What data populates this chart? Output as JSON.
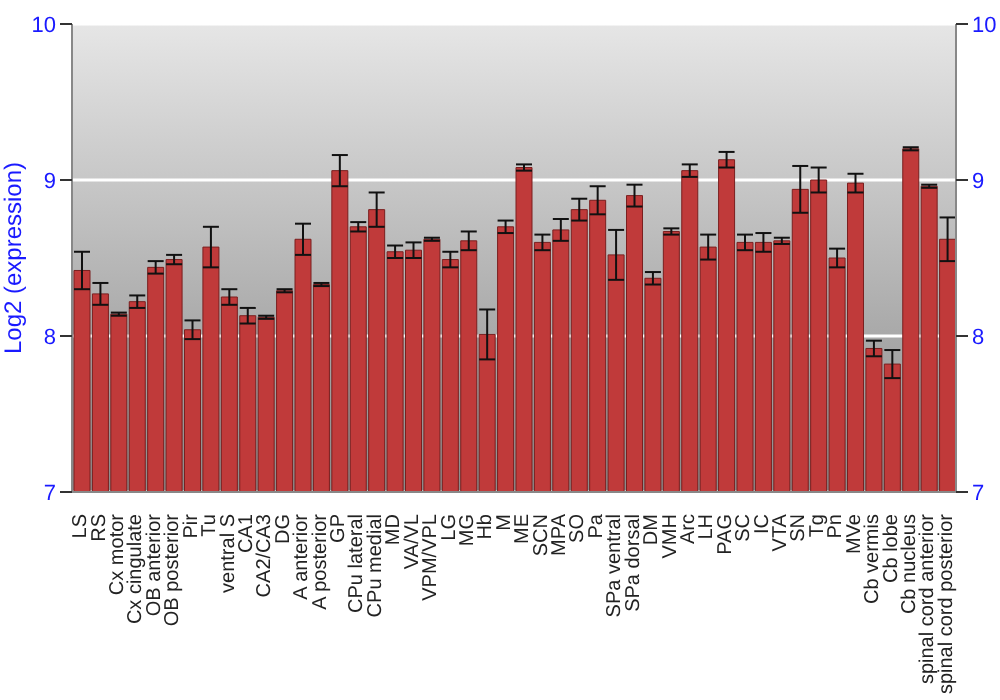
{
  "chart_data": {
    "type": "bar",
    "ylabel": "Log2 (expression)",
    "categories": [
      "LS",
      "RS",
      "Cx motor",
      "Cx cingulate",
      "OB anterior",
      "OB posterior",
      "Pir",
      "Tu",
      "ventral S",
      "CA1",
      "CA2/CA3",
      "DG",
      "A anterior",
      "A posterior",
      "GP",
      "CPu lateral",
      "CPu medial",
      "MD",
      "VA/VL",
      "VPM/VPL",
      "LG",
      "MG",
      "Hb",
      "M",
      "ME",
      "SCN",
      "MPA",
      "SO",
      "Pa",
      "SPa ventral",
      "SPa dorsal",
      "DM",
      "VMH",
      "Arc",
      "LH",
      "PAG",
      "SC",
      "IC",
      "VTA",
      "SN",
      "Tg",
      "Pn",
      "MVe",
      "Cb vermis",
      "Cb lobe",
      "Cb nucleus",
      "spinal cord anterior",
      "spinal cord posterior"
    ],
    "values": [
      8.42,
      8.27,
      8.14,
      8.22,
      8.44,
      8.49,
      8.04,
      8.57,
      8.25,
      8.13,
      8.12,
      8.29,
      8.62,
      8.33,
      9.06,
      8.7,
      8.81,
      8.54,
      8.55,
      8.62,
      8.49,
      8.61,
      8.01,
      8.7,
      9.08,
      8.6,
      8.68,
      8.81,
      8.87,
      8.52,
      8.9,
      8.37,
      8.67,
      9.06,
      8.57,
      9.13,
      8.6,
      8.6,
      8.61,
      8.94,
      9.0,
      8.5,
      8.98,
      7.92,
      7.82,
      9.2,
      8.96,
      8.62
    ],
    "errors": [
      0.12,
      0.07,
      0.01,
      0.04,
      0.04,
      0.03,
      0.06,
      0.13,
      0.05,
      0.05,
      0.01,
      0.01,
      0.1,
      0.01,
      0.1,
      0.03,
      0.11,
      0.04,
      0.05,
      0.01,
      0.05,
      0.06,
      0.16,
      0.04,
      0.02,
      0.05,
      0.07,
      0.07,
      0.09,
      0.16,
      0.07,
      0.04,
      0.02,
      0.04,
      0.08,
      0.05,
      0.05,
      0.06,
      0.02,
      0.15,
      0.08,
      0.06,
      0.06,
      0.05,
      0.09,
      0.01,
      0.01,
      0.14
    ],
    "color": "#c03a3a",
    "ylim": [
      7,
      10
    ],
    "yticks": [
      7,
      8,
      9,
      10
    ],
    "y2lim": [
      7,
      10
    ],
    "y2ticks": [
      7,
      8,
      9,
      10
    ],
    "grid": "y"
  }
}
